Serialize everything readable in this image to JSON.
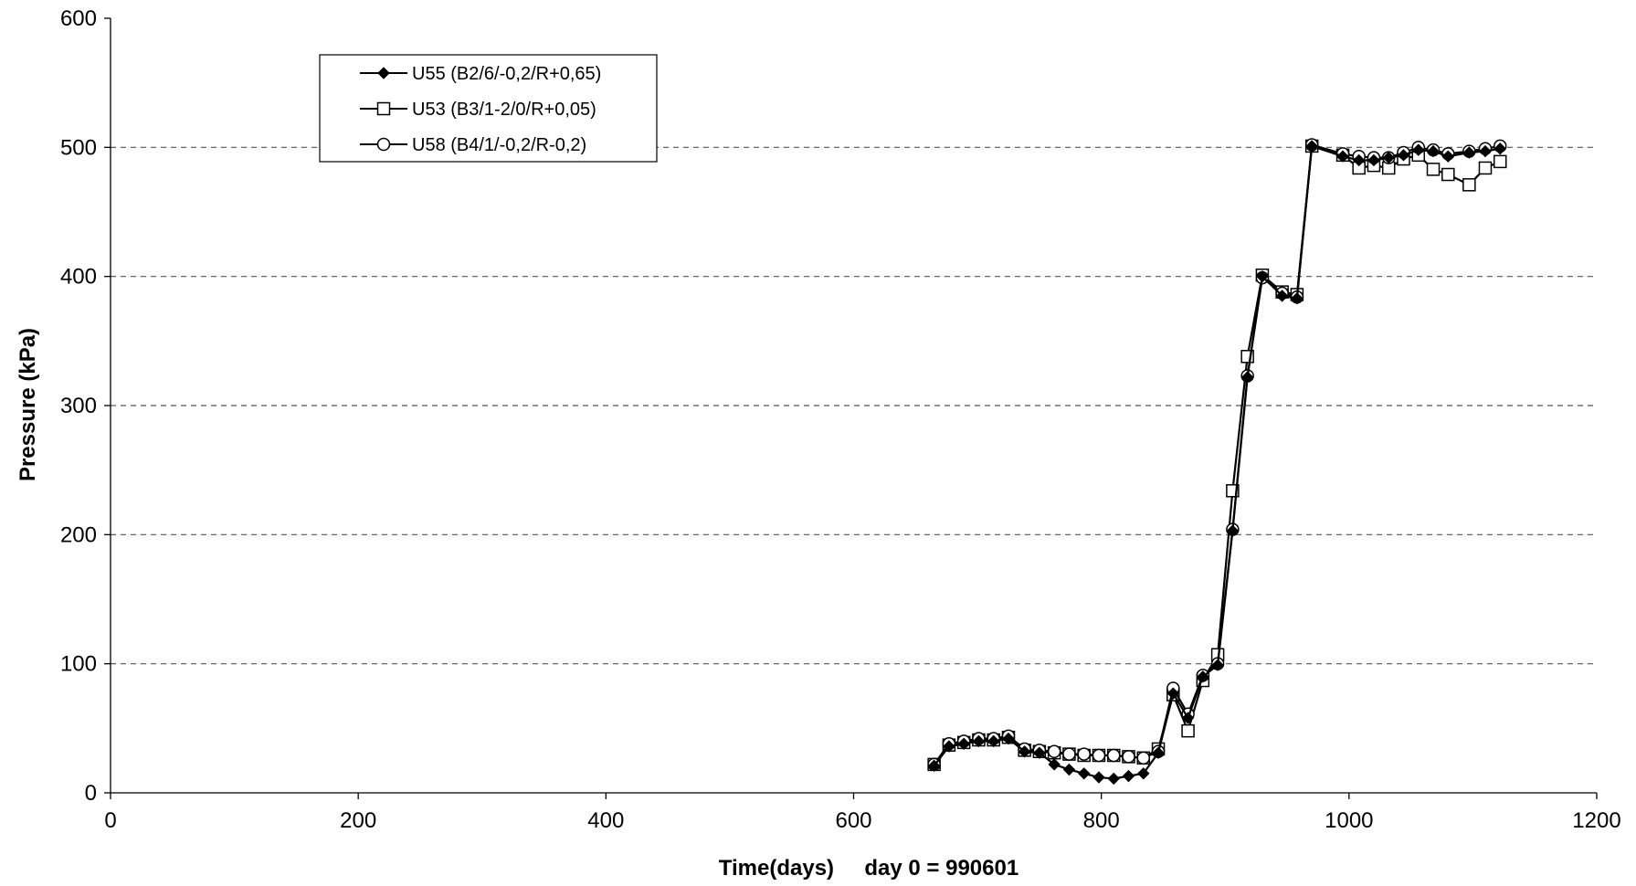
{
  "chart_data": {
    "type": "line",
    "title": "",
    "xlabel": "Time(days)     day 0 = 990601",
    "ylabel": "Pressure (kPa)",
    "xlim": [
      0,
      1200
    ],
    "ylim": [
      0,
      600
    ],
    "x_ticks": [
      0,
      200,
      400,
      600,
      800,
      1000,
      1200
    ],
    "y_ticks": [
      0,
      100,
      200,
      300,
      400,
      500,
      600
    ],
    "grid": "horizontal dashed at 100, 200, 300, 400, 500",
    "legend_position": "top-left",
    "series": [
      {
        "name": "U55 (B2/6/-0,2/R+0,65)",
        "marker": "filled-diamond",
        "color": "#000000",
        "x": [
          665,
          677,
          689,
          701,
          713,
          725,
          738,
          750,
          762,
          774,
          786,
          798,
          810,
          822,
          834,
          846,
          858,
          870,
          882,
          894,
          906,
          918,
          930,
          946,
          958,
          970,
          995,
          1008,
          1020,
          1032,
          1044,
          1056,
          1068,
          1080,
          1097,
          1110,
          1122
        ],
        "y": [
          21,
          36,
          38,
          40,
          40,
          42,
          32,
          31,
          22,
          18,
          15,
          12,
          11,
          13,
          15,
          31,
          77,
          58,
          90,
          99,
          203,
          322,
          400,
          385,
          383,
          501,
          493,
          490,
          490,
          492,
          494,
          498,
          497,
          493,
          496,
          497,
          499
        ]
      },
      {
        "name": "U53 (B3/1-2/0/R+0,05)",
        "marker": "open-square",
        "color": "#000000",
        "x": [
          665,
          677,
          689,
          701,
          713,
          725,
          738,
          750,
          762,
          774,
          786,
          798,
          810,
          822,
          834,
          846,
          858,
          870,
          882,
          894,
          906,
          918,
          930,
          946,
          958,
          970,
          995,
          1008,
          1020,
          1032,
          1044,
          1056,
          1068,
          1080,
          1097,
          1110,
          1122
        ],
        "y": [
          22,
          37,
          39,
          41,
          41,
          43,
          33,
          32,
          31,
          30,
          29,
          29,
          29,
          28,
          27,
          34,
          76,
          48,
          87,
          107,
          234,
          338,
          401,
          388,
          386,
          501,
          494,
          484,
          486,
          484,
          491,
          494,
          483,
          479,
          471,
          484,
          489
        ]
      },
      {
        "name": "U58 (B4/1/-0,2/R-0,2)",
        "marker": "open-circle",
        "color": "#000000",
        "x": [
          665,
          677,
          689,
          701,
          713,
          725,
          738,
          750,
          762,
          774,
          786,
          798,
          810,
          822,
          834,
          846,
          858,
          870,
          882,
          894,
          906,
          918,
          930,
          946,
          958,
          970,
          995,
          1008,
          1020,
          1032,
          1044,
          1056,
          1068,
          1080,
          1097,
          1110,
          1122
        ],
        "y": [
          22,
          38,
          40,
          42,
          42,
          44,
          34,
          33,
          32,
          30,
          30,
          29,
          29,
          28,
          27,
          32,
          81,
          61,
          91,
          100,
          204,
          323,
          399,
          387,
          384,
          502,
          495,
          493,
          492,
          492,
          496,
          500,
          498,
          495,
          497,
          499,
          501
        ]
      }
    ]
  }
}
